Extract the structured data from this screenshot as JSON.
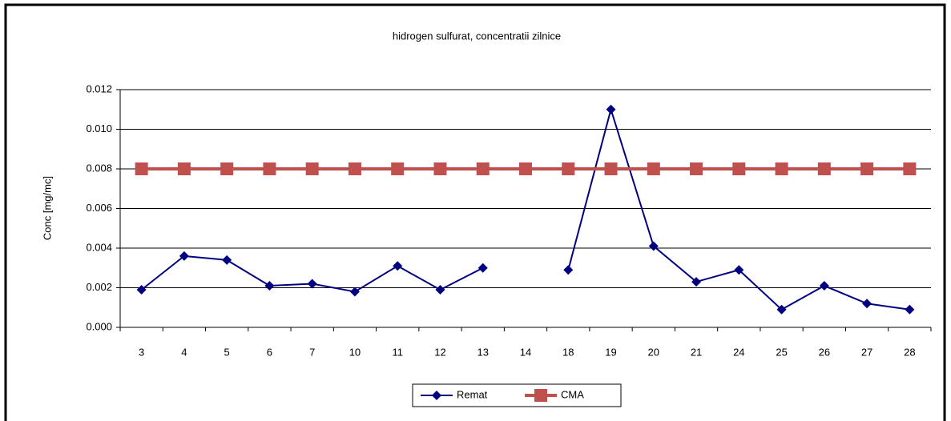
{
  "chart_data": {
    "type": "line",
    "title": "hidrogen sulfurat, concentratii zilnice",
    "y_label": "Conc [mg/mc]",
    "categories": [
      "3",
      "4",
      "5",
      "6",
      "7",
      "10",
      "11",
      "12",
      "13",
      "14",
      "18",
      "19",
      "20",
      "21",
      "24",
      "25",
      "26",
      "27",
      "28"
    ],
    "series": [
      {
        "name": "Remat",
        "color": "#000080",
        "values": [
          0.0019,
          0.0036,
          0.0034,
          0.0021,
          0.0022,
          0.0018,
          0.0031,
          0.0019,
          0.003,
          null,
          0.0029,
          0.011,
          0.0041,
          0.0023,
          0.0029,
          0.0009,
          0.0021,
          0.0012,
          0.0009
        ]
      },
      {
        "name": "CMA",
        "color": "#c0504d",
        "values": [
          0.008,
          0.008,
          0.008,
          0.008,
          0.008,
          0.008,
          0.008,
          0.008,
          0.008,
          0.008,
          0.008,
          0.008,
          0.008,
          0.008,
          0.008,
          0.008,
          0.008,
          0.008,
          0.008
        ]
      }
    ],
    "ylim": [
      0,
      0.012
    ],
    "yticks": [
      {
        "value": 0,
        "label": "0.000"
      },
      0.002,
      0.004,
      0.006,
      0.008,
      {
        "value": 0.01,
        "label": "0.010"
      },
      0.012
    ],
    "grid": true,
    "legend": "bottom"
  }
}
